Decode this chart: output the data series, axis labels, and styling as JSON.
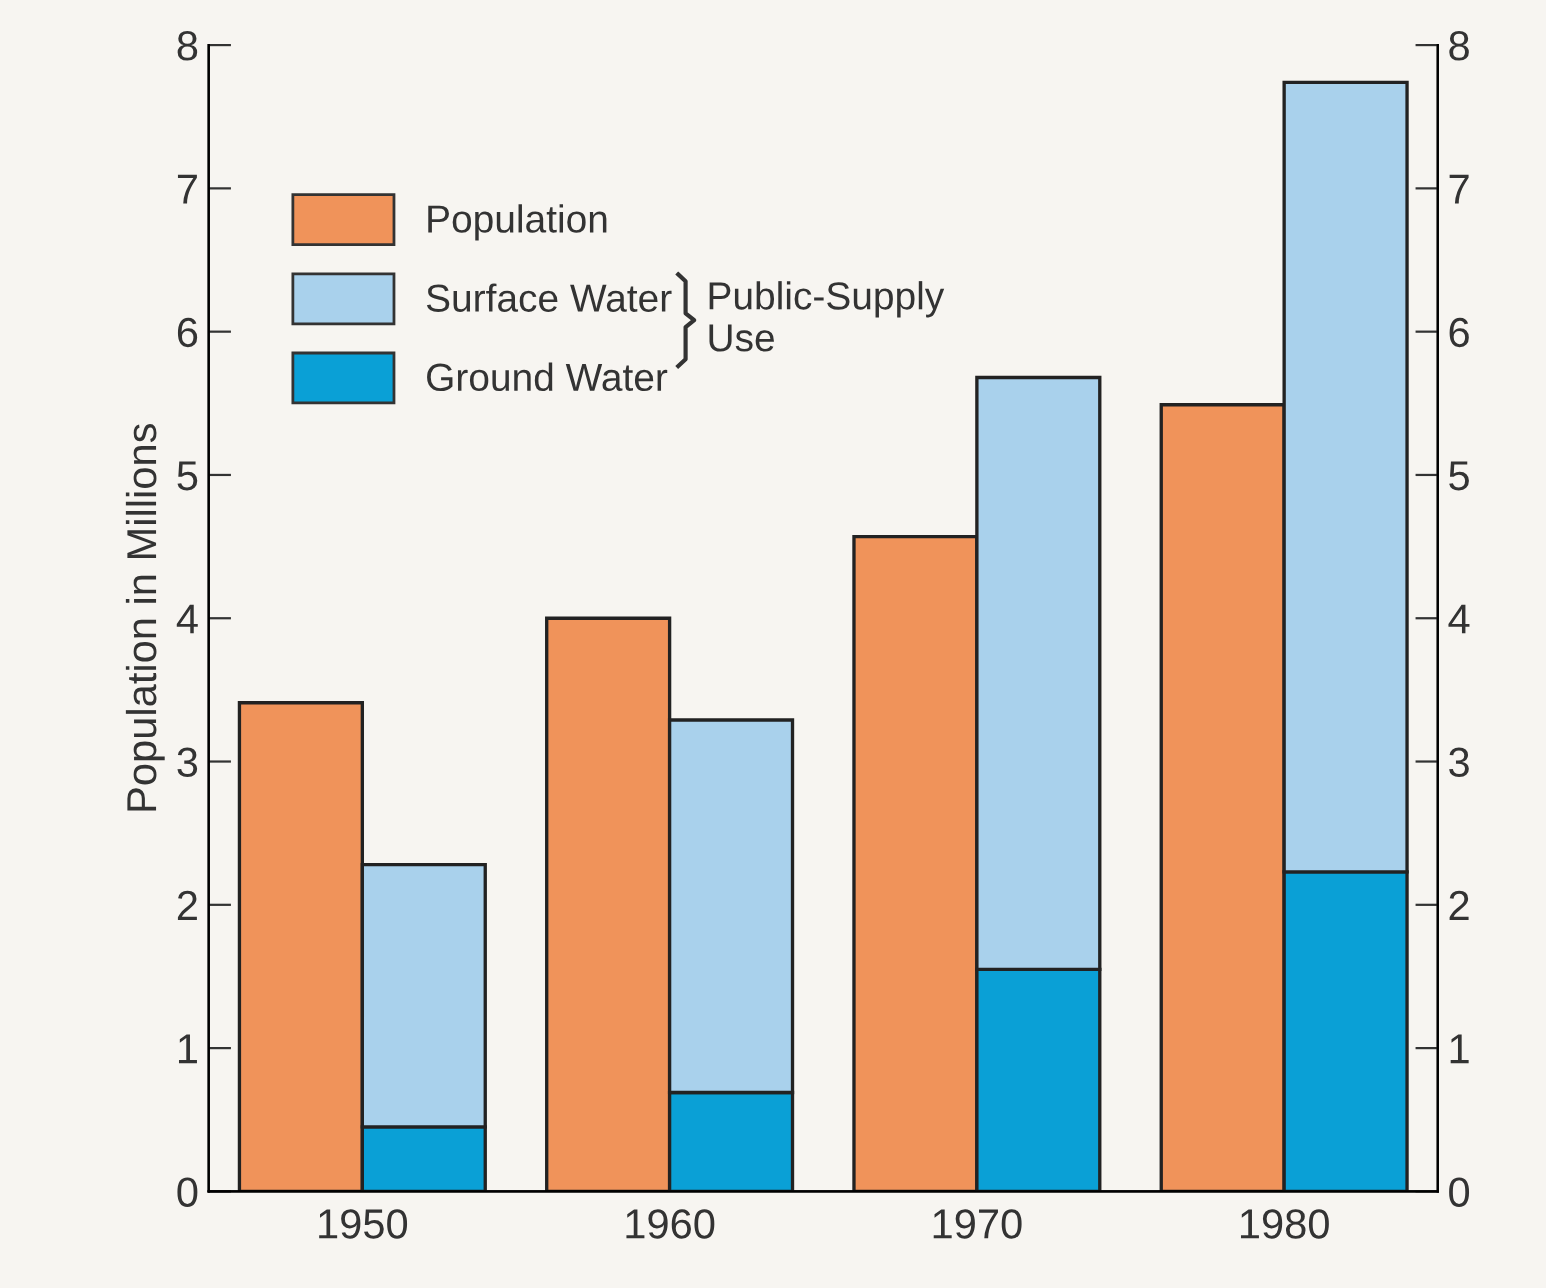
{
  "chart_data": {
    "type": "bar",
    "ylabel": "Population in Millions",
    "categories": [
      "1950",
      "1960",
      "1970",
      "1980"
    ],
    "series": [
      {
        "name": "Population",
        "color": "#f0935a",
        "values": [
          3.41,
          4.0,
          4.57,
          5.49
        ]
      },
      {
        "name": "Ground Water",
        "color": "#0aa0d6",
        "values": [
          0.45,
          0.69,
          1.55,
          2.23
        ],
        "axis": "y2"
      },
      {
        "name": "Surface Water",
        "color": "#a9d1ec",
        "values": [
          1.83,
          2.6,
          4.13,
          5.51
        ],
        "axis": "y2"
      }
    ],
    "stacked": true,
    "ylim": [
      0,
      8
    ],
    "yticks": [
      0,
      1,
      2,
      3,
      4,
      5,
      6,
      7,
      8
    ],
    "y2lim": [
      0,
      8
    ],
    "y2ticks": [
      0,
      1,
      2,
      3,
      4,
      5,
      6,
      7,
      8
    ],
    "legend": "top left",
    "grid": false,
    "annotations": [
      "Public-Supply\nUse"
    ]
  }
}
